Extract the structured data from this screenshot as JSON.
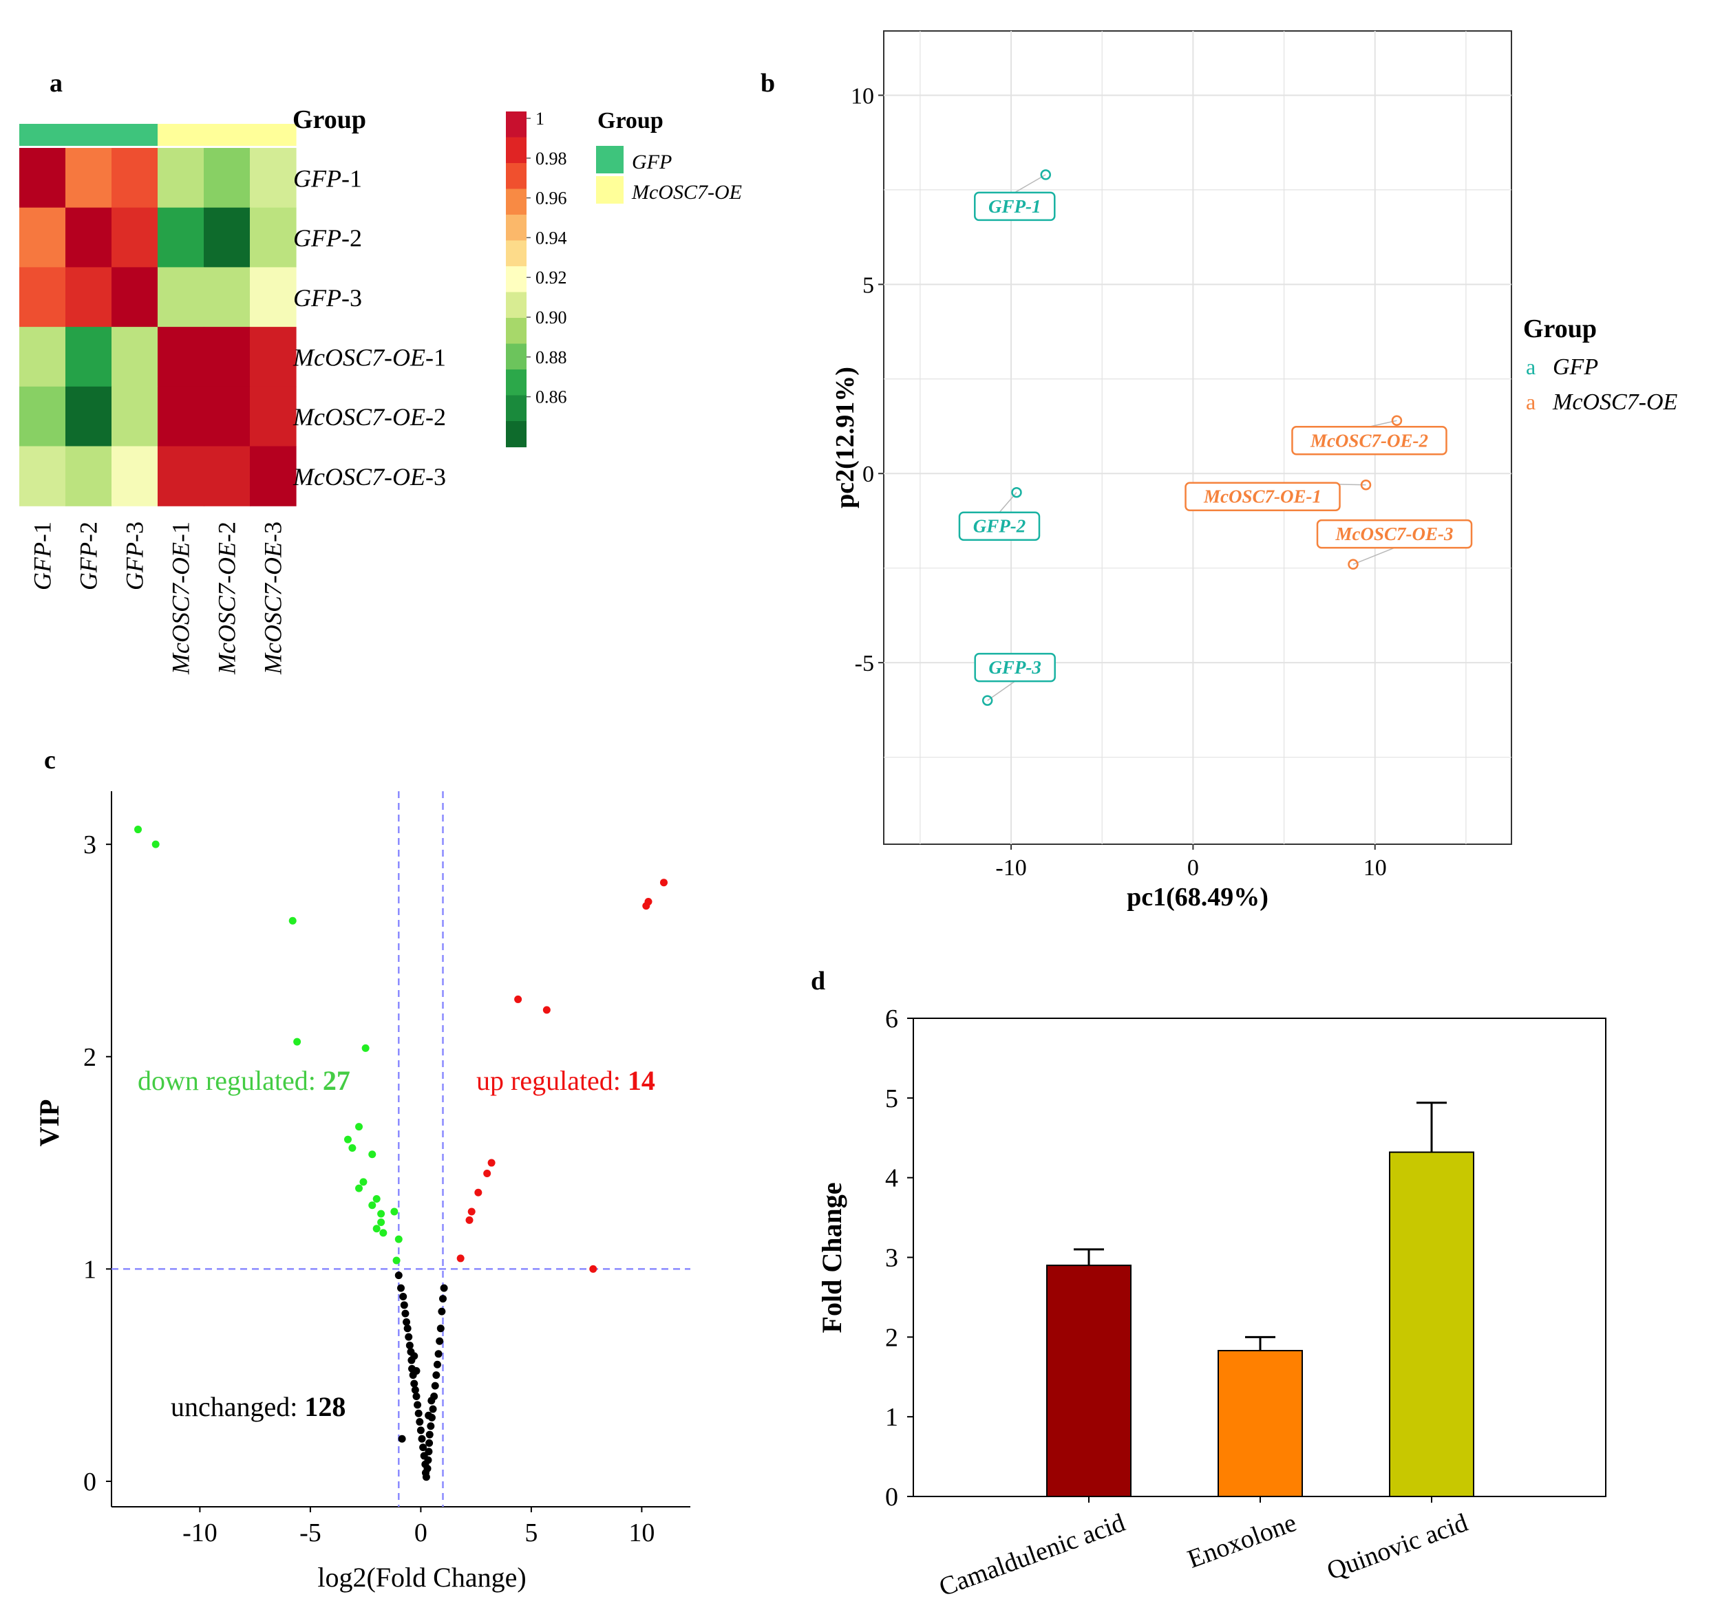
{
  "panel_labels": {
    "a": "a",
    "b": "b",
    "c": "c",
    "d": "d"
  },
  "colors": {
    "gfp": "#3ec47c",
    "oe": "#ffff99",
    "pca_gfp": "#19b2a2",
    "pca_oe": "#f5823c",
    "up": "#ee1111",
    "down": "#22ee22",
    "unchanged": "#000000",
    "bar_1": "#990000",
    "bar_2": "#ff8000",
    "bar_3": "#c8c800",
    "dashed": "#8a8aff"
  },
  "chart_data": [
    {
      "type": "heatmap",
      "samples": [
        "GFP-1",
        "GFP-2",
        "GFP-3",
        "McOSC7-OE-1",
        "McOSC7-OE-2",
        "McOSC7-OE-3"
      ],
      "row_labels": [
        {
          "base": "GFP",
          "suffix": "-1"
        },
        {
          "base": "GFP",
          "suffix": "-2"
        },
        {
          "base": "GFP",
          "suffix": "-3"
        },
        {
          "base": "McOSC7-OE",
          "suffix": "-1"
        },
        {
          "base": "McOSC7-OE",
          "suffix": "-2"
        },
        {
          "base": "McOSC7-OE",
          "suffix": "-3"
        }
      ],
      "groups": [
        "GFP",
        "GFP",
        "GFP",
        "McOSC7-OE",
        "McOSC7-OE",
        "McOSC7-OE"
      ],
      "group_title": "Group",
      "legend_title": "Group",
      "legend_items": [
        "GFP",
        "McOSC7-OE"
      ],
      "colorbar_ticks": [
        "1",
        "0.98",
        "0.96",
        "0.94",
        "0.92",
        "0.90",
        "0.88",
        "0.86"
      ],
      "colorbar_colors": [
        "#c8102e",
        "#e02424",
        "#f0502e",
        "#f88a44",
        "#fbb86a",
        "#fddb8a",
        "#ffffbf",
        "#d8ec92",
        "#a7d86a",
        "#6cc45c",
        "#2ca84a",
        "#1a8a3c",
        "#0e6b2c"
      ],
      "values": [
        [
          1.0,
          0.965,
          0.975,
          0.905,
          0.895,
          0.91
        ],
        [
          0.965,
          1.0,
          0.985,
          0.875,
          0.86,
          0.905
        ],
        [
          0.975,
          0.985,
          1.0,
          0.905,
          0.905,
          0.918
        ],
        [
          0.905,
          0.875,
          0.905,
          1.0,
          1.0,
          0.99
        ],
        [
          0.895,
          0.86,
          0.905,
          1.0,
          1.0,
          0.99
        ],
        [
          0.91,
          0.905,
          0.918,
          0.99,
          0.99,
          1.0
        ]
      ]
    },
    {
      "type": "scatter",
      "title": "",
      "xlabel": "pc1(68.49%)",
      "ylabel": "pc2(12.91%)",
      "xlim": [
        -17,
        17.5
      ],
      "ylim": [
        -9.8,
        11.7
      ],
      "xticks": [
        -10,
        0,
        10
      ],
      "yticks": [
        -5,
        0,
        5,
        10
      ],
      "grid": true,
      "legend_title": "Group",
      "legend_marker": "a",
      "series": [
        {
          "name": "GFP",
          "points": [
            {
              "label": "GFP-1",
              "x": -8.1,
              "y": 7.9
            },
            {
              "label": "GFP-2",
              "x": -9.7,
              "y": -0.5
            },
            {
              "label": "GFP-3",
              "x": -11.3,
              "y": -6.0
            }
          ]
        },
        {
          "name": "McOSC7-OE",
          "points": [
            {
              "label": "McOSC7-OE-2",
              "x": 11.2,
              "y": 1.4
            },
            {
              "label": "McOSC7-OE-1",
              "x": 9.5,
              "y": -0.3
            },
            {
              "label": "McOSC7-OE-3",
              "x": 8.8,
              "y": -2.4
            }
          ]
        }
      ]
    },
    {
      "type": "scatter",
      "title": "",
      "xlabel": "log2(Fold Change)",
      "ylabel": "VIP",
      "xlim": [
        -14,
        12.2
      ],
      "ylim": [
        -0.12,
        3.25
      ],
      "xticks": [
        -10,
        -5,
        0,
        5,
        10
      ],
      "yticks": [
        0,
        1,
        2,
        3
      ],
      "thresholds": {
        "x": [
          -1,
          1
        ],
        "y": 1
      },
      "annotations": {
        "down": {
          "label": "down regulated: ",
          "count": "27"
        },
        "up": {
          "label": "up regulated: ",
          "count": "14"
        },
        "unchanged": {
          "label": "unchanged: ",
          "count": "128"
        }
      },
      "series": [
        {
          "name": "up regulated",
          "points": [
            [
              11.0,
              2.82
            ],
            [
              10.3,
              2.73
            ],
            [
              10.2,
              2.71
            ],
            [
              4.4,
              2.27
            ],
            [
              5.7,
              2.22
            ],
            [
              3.2,
              1.5
            ],
            [
              3.0,
              1.45
            ],
            [
              2.6,
              1.36
            ],
            [
              2.3,
              1.27
            ],
            [
              2.2,
              1.23
            ],
            [
              1.8,
              1.05
            ],
            [
              7.8,
              1.0
            ]
          ]
        },
        {
          "name": "down regulated",
          "points": [
            [
              -12.8,
              3.07
            ],
            [
              -12.0,
              3.0
            ],
            [
              -5.8,
              2.64
            ],
            [
              -5.6,
              2.07
            ],
            [
              -2.5,
              2.04
            ],
            [
              -2.8,
              1.67
            ],
            [
              -3.3,
              1.61
            ],
            [
              -3.1,
              1.57
            ],
            [
              -2.2,
              1.54
            ],
            [
              -2.6,
              1.41
            ],
            [
              -2.8,
              1.38
            ],
            [
              -2.0,
              1.33
            ],
            [
              -2.2,
              1.3
            ],
            [
              -1.8,
              1.26
            ],
            [
              -1.2,
              1.27
            ],
            [
              -1.8,
              1.22
            ],
            [
              -2.0,
              1.19
            ],
            [
              -1.7,
              1.17
            ],
            [
              -1.0,
              1.14
            ],
            [
              -1.1,
              1.04
            ]
          ]
        },
        {
          "name": "unchanged",
          "points": [
            [
              -1.0,
              0.97
            ],
            [
              -0.9,
              0.91
            ],
            [
              -0.8,
              0.87
            ],
            [
              -0.75,
              0.83
            ],
            [
              -0.7,
              0.79
            ],
            [
              -0.65,
              0.75
            ],
            [
              -0.6,
              0.72
            ],
            [
              -0.55,
              0.68
            ],
            [
              -0.5,
              0.64
            ],
            [
              -0.45,
              0.61
            ],
            [
              -0.42,
              0.57
            ],
            [
              -0.4,
              0.53
            ],
            [
              -0.35,
              0.5
            ],
            [
              -0.3,
              0.46
            ],
            [
              -0.25,
              0.43
            ],
            [
              -0.2,
              0.4
            ],
            [
              -0.15,
              0.36
            ],
            [
              -0.1,
              0.32
            ],
            [
              -0.05,
              0.28
            ],
            [
              0.0,
              0.24
            ],
            [
              0.05,
              0.2
            ],
            [
              0.1,
              0.16
            ],
            [
              0.15,
              0.12
            ],
            [
              0.2,
              0.08
            ],
            [
              0.22,
              0.04
            ],
            [
              0.25,
              0.02
            ],
            [
              0.3,
              0.06
            ],
            [
              0.33,
              0.1
            ],
            [
              0.36,
              0.14
            ],
            [
              0.38,
              0.18
            ],
            [
              0.4,
              0.22
            ],
            [
              0.45,
              0.26
            ],
            [
              0.5,
              0.3
            ],
            [
              0.55,
              0.34
            ],
            [
              0.6,
              0.4
            ],
            [
              0.65,
              0.45
            ],
            [
              0.7,
              0.5
            ],
            [
              0.75,
              0.55
            ],
            [
              0.8,
              0.6
            ],
            [
              0.85,
              0.66
            ],
            [
              0.9,
              0.72
            ],
            [
              0.95,
              0.8
            ],
            [
              1.0,
              0.86
            ],
            [
              1.05,
              0.91
            ],
            [
              -0.85,
              0.2
            ],
            [
              -0.3,
              0.59
            ],
            [
              0.35,
              0.31
            ],
            [
              0.48,
              0.38
            ],
            [
              -0.2,
              0.52
            ]
          ]
        }
      ]
    },
    {
      "type": "bar",
      "categories": [
        "Camaldulenic acid",
        "Enoxolone",
        "Quinovic acid"
      ],
      "values": [
        2.9,
        1.83,
        4.32
      ],
      "errors": [
        0.2,
        0.17,
        0.62
      ],
      "xlabel": "",
      "ylabel": "Fold Change",
      "ylim": [
        0,
        6
      ],
      "yticks": [
        0,
        1,
        2,
        3,
        4,
        5,
        6
      ]
    }
  ]
}
